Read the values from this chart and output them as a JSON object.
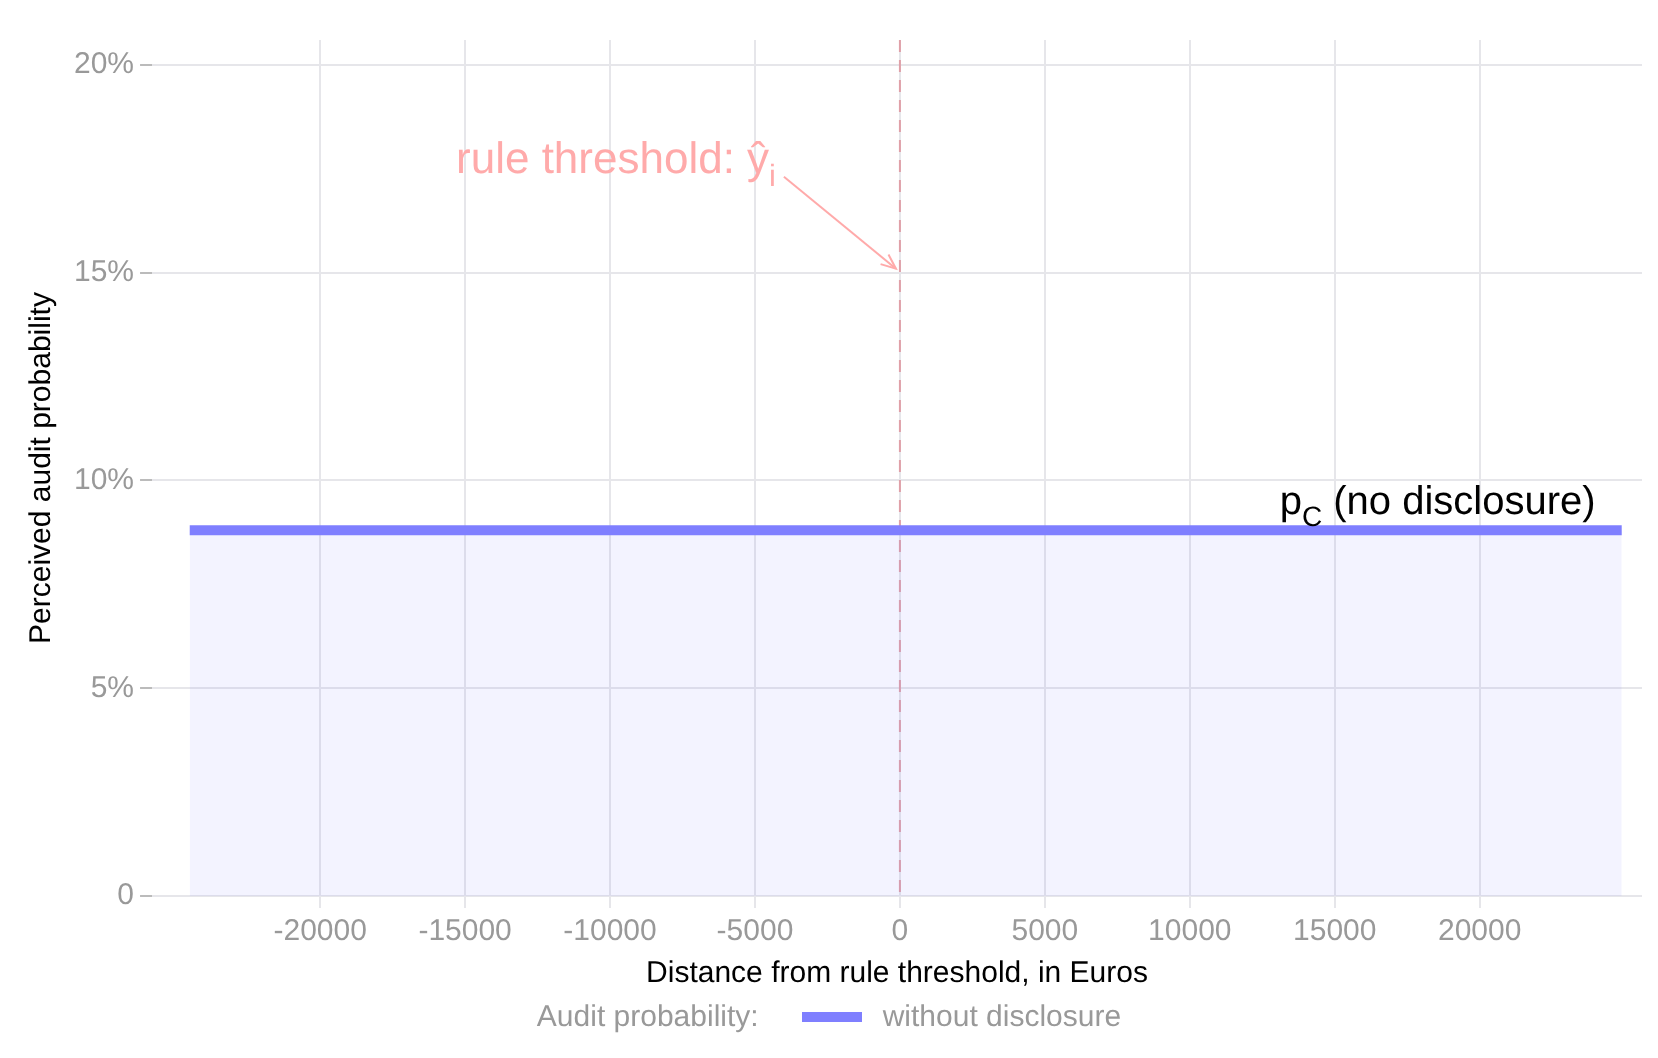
{
  "chart_data": {
    "type": "area",
    "xlabel": "Distance from rule threshold, in Euros",
    "ylabel": "Perceived audit probability",
    "legend_title": "Audit probability:",
    "series": [
      {
        "name": "without disclosure",
        "color": "#7f7fff",
        "x": [
          -24500,
          24900
        ],
        "values": [
          8.8,
          8.8
        ]
      }
    ],
    "xlim": [
      -25800,
      25600
    ],
    "xticks": [
      -20000,
      -15000,
      -10000,
      -5000,
      0,
      5000,
      10000,
      15000,
      20000
    ],
    "ylim": [
      0,
      20.6
    ],
    "yticks": [
      {
        "value": 0,
        "label": "0"
      },
      {
        "value": 5,
        "label": "5%"
      },
      {
        "value": 10,
        "label": "10%"
      },
      {
        "value": 15,
        "label": "15%"
      },
      {
        "value": 20,
        "label": "20%"
      }
    ],
    "ref_lines": [
      {
        "axis": "x",
        "value": 0,
        "color": "#e0a0a8",
        "line_style": "dashed"
      }
    ],
    "annotations": [
      {
        "text": "rule threshold: ŷ$_{i}$",
        "x": 0,
        "y": 15
      },
      {
        "text": "p$_{C}$ (no disclosure)",
        "x": 24000,
        "y": 8.8
      }
    ],
    "grid": true,
    "legend": "bottom"
  }
}
